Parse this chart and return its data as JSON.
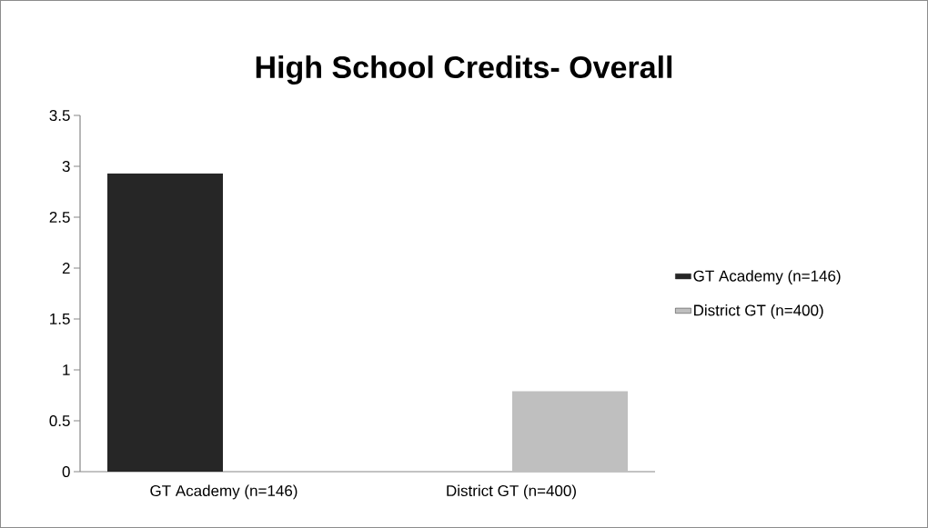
{
  "chart_data": {
    "type": "bar",
    "title": "High School Credits- Overall",
    "categories": [
      "GT Academy (n=146)",
      "District GT (n=400)"
    ],
    "series": [
      {
        "name": "GT Academy (n=146)",
        "color": "#262626",
        "values": [
          2.93,
          null
        ]
      },
      {
        "name": "District GT (n=400)",
        "color": "#bfbfbf",
        "values": [
          null,
          0.79
        ]
      }
    ],
    "ylim": [
      0,
      3.5
    ],
    "yticks": [
      0,
      0.5,
      1,
      1.5,
      2,
      2.5,
      3,
      3.5
    ],
    "grid": false,
    "legend": "right"
  }
}
